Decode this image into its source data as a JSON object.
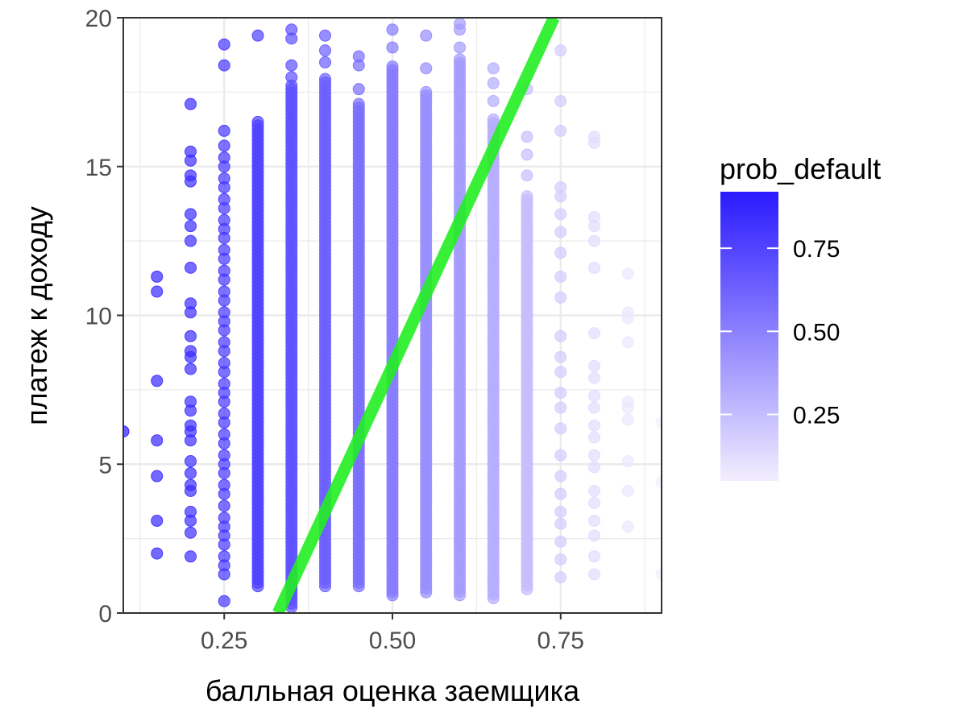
{
  "chart_data": {
    "type": "scatter",
    "title": "",
    "xlabel": "балльная оценка заемщика",
    "ylabel": "платеж к доходу",
    "xlim": [
      0.1,
      0.9
    ],
    "ylim": [
      0,
      20
    ],
    "x_ticks": [
      0.25,
      0.5,
      0.75
    ],
    "x_tick_labels": [
      "0.25",
      "0.50",
      "0.75"
    ],
    "y_ticks": [
      0,
      5,
      10,
      15,
      20
    ],
    "y_tick_labels": [
      "0",
      "5",
      "10",
      "15",
      "20"
    ],
    "grid": true,
    "theme": "light grey gridlines on white panel with dark border",
    "point_color_low": "#f3eefe",
    "point_color_high": "#2a1aff",
    "point_opacity": 0.7,
    "legend": {
      "title": "prob_default",
      "position": "right",
      "breaks": [
        0.75,
        0.5,
        0.25
      ],
      "labels": [
        "0.75",
        "0.50",
        "0.25"
      ],
      "range": [
        0.05,
        0.92
      ]
    },
    "boundary_line": {
      "color": "#22ee22",
      "points": [
        {
          "x": 0.33,
          "y": 0
        },
        {
          "x": 0.74,
          "y": 20
        }
      ]
    },
    "columns": [
      {
        "x": 0.1,
        "prob": 0.92,
        "y": [
          6.1
        ]
      },
      {
        "x": 0.15,
        "prob": 0.86,
        "y": [
          2.0,
          3.1,
          4.6,
          5.8,
          7.8,
          10.8,
          11.3
        ]
      },
      {
        "x": 0.2,
        "prob": 0.84,
        "y": [
          1.9,
          2.7,
          3.1,
          3.4,
          4.1,
          4.3,
          4.7,
          5.1,
          5.8,
          6.1,
          6.3,
          6.8,
          7.1,
          8.2,
          8.6,
          8.8,
          9.3,
          10.1,
          10.4,
          11.6,
          12.5,
          13.0,
          13.4,
          14.5,
          14.7,
          15.2,
          15.5,
          17.1
        ]
      },
      {
        "x": 0.25,
        "prob": 0.8,
        "y": [
          0.4,
          1.3,
          1.6,
          1.9,
          2.3,
          2.6,
          2.9,
          3.2,
          3.6,
          4.0,
          4.3,
          4.7,
          5.0,
          5.3,
          5.7,
          6.0,
          6.4,
          6.7,
          7.1,
          7.4,
          7.7,
          8.1,
          8.4,
          8.8,
          9.1,
          9.5,
          9.8,
          10.1,
          10.5,
          10.8,
          11.2,
          11.5,
          11.9,
          12.2,
          12.6,
          12.9,
          13.2,
          13.6,
          13.9,
          14.3,
          14.6,
          15.0,
          15.3,
          15.7,
          16.2,
          18.4,
          19.1
        ]
      },
      {
        "x": 0.3,
        "prob": 0.76,
        "range": [
          0.9,
          16.6
        ],
        "extra": [
          19.4
        ]
      },
      {
        "x": 0.35,
        "prob": 0.7,
        "range": [
          0.2,
          17.8
        ],
        "extra": [
          18.0,
          18.4,
          19.3,
          19.6
        ]
      },
      {
        "x": 0.4,
        "prob": 0.64,
        "range": [
          0.9,
          18.0
        ],
        "extra": [
          18.5,
          18.9,
          19.4
        ]
      },
      {
        "x": 0.45,
        "prob": 0.58,
        "range": [
          0.9,
          17.2
        ],
        "extra": [
          17.6,
          18.4,
          18.7
        ]
      },
      {
        "x": 0.5,
        "prob": 0.52,
        "range": [
          0.6,
          18.4
        ],
        "extra": [
          19.0,
          19.6
        ]
      },
      {
        "x": 0.55,
        "prob": 0.45,
        "range": [
          0.7,
          17.6
        ],
        "extra": [
          18.3,
          19.4
        ]
      },
      {
        "x": 0.6,
        "prob": 0.39,
        "range": [
          0.6,
          18.6
        ],
        "extra": [
          19.0,
          19.6,
          19.8
        ]
      },
      {
        "x": 0.65,
        "prob": 0.32,
        "range": [
          0.5,
          16.6
        ],
        "extra": [
          17.2,
          17.8,
          18.3
        ]
      },
      {
        "x": 0.7,
        "prob": 0.25,
        "range": [
          0.8,
          14.0
        ],
        "extra": [
          14.7,
          15.4,
          16.0,
          17.6
        ]
      },
      {
        "x": 0.75,
        "prob": 0.19,
        "y": [
          1.2,
          1.8,
          2.4,
          3.0,
          3.4,
          4.0,
          4.6,
          5.3,
          6.2,
          6.9,
          7.4,
          8.1,
          8.6,
          9.3,
          10.6,
          11.3,
          12.1,
          12.8,
          13.4,
          14.0,
          14.3,
          16.2,
          17.2,
          18.9
        ]
      },
      {
        "x": 0.8,
        "prob": 0.13,
        "y": [
          1.3,
          1.9,
          2.6,
          3.1,
          3.7,
          4.1,
          4.9,
          5.3,
          5.9,
          6.3,
          6.9,
          7.3,
          7.9,
          8.3,
          9.4,
          11.6,
          12.5,
          13.0,
          13.3,
          15.8,
          16.0
        ]
      },
      {
        "x": 0.85,
        "prob": 0.08,
        "y": [
          2.9,
          4.1,
          5.1,
          6.5,
          6.9,
          7.1,
          9.1,
          9.9,
          10.1,
          11.4
        ]
      },
      {
        "x": 0.9,
        "prob": 0.05,
        "y": [
          1.3,
          4.4,
          6.4
        ]
      }
    ]
  }
}
